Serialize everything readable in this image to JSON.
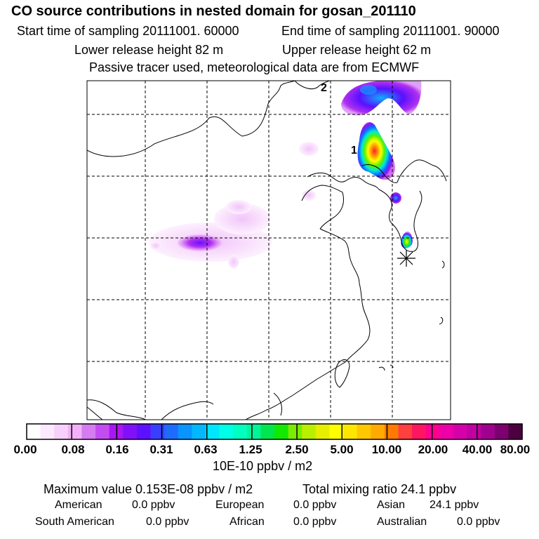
{
  "header": {
    "title": "CO  source contributions in nested domain for gosan_201110",
    "start_time": "Start time of sampling 20111001. 60000",
    "end_time": "End time of sampling 20111001. 90000",
    "lower_release": "Lower release height   82 m",
    "upper_release": "Upper release height   62 m",
    "tracer_note": "Passive tracer used, meteorological data are from ECMWF"
  },
  "map": {
    "marker_labels": [
      "1",
      "2"
    ],
    "receptor_symbol": "star-receptor"
  },
  "colorbar": {
    "tick_labels": [
      "0.00",
      "0.08",
      "0.16",
      "0.31",
      "0.63",
      "1.25",
      "2.50",
      "5.00",
      "10.00",
      "20.00",
      "40.00",
      "80.00"
    ],
    "unit": "10E-10 ppbv / m2",
    "colors": [
      "#ffffff",
      "#fbe9fd",
      "#f7d0fb",
      "#f3b0f8",
      "#d57cf2",
      "#c24cf0",
      "#a916f2",
      "#8010f7",
      "#5d10ff",
      "#3a3fff",
      "#1e6cff",
      "#0a94ff",
      "#00b8ff",
      "#00e6ff",
      "#00ffe8",
      "#00ffc0",
      "#00f59a",
      "#00e64e",
      "#12e800",
      "#7aec00",
      "#b8f000",
      "#e6ef00",
      "#ffff00",
      "#ffe600",
      "#ffc800",
      "#ffaa00",
      "#ff7a00",
      "#ff4040",
      "#ff1660",
      "#ff0090",
      "#ee00a8",
      "#d600aa",
      "#c000a0",
      "#a00090",
      "#7e0070",
      "#4c0040"
    ]
  },
  "chart_data": {
    "type": "heatmap",
    "title": "CO  source contributions in nested domain for gosan_201110",
    "colorbar_levels": [
      0.0,
      0.08,
      0.16,
      0.31,
      0.63,
      1.25,
      2.5,
      5.0,
      10.0,
      20.0,
      40.0,
      80.0
    ],
    "colorbar_unit": "10E-10 ppbv / m2",
    "maximum_value": "0.153E-08 ppbv / m2",
    "total_mixing_ratio": "24.1 ppbv",
    "source_contributions": {
      "American": 0.0,
      "European": 0.0,
      "Asian": 24.1,
      "South American": 0.0,
      "African": 0.0,
      "Australian": 0.0
    },
    "plumes": [
      {
        "region": "north-east (marker 1)",
        "peak_level": 10.0
      },
      {
        "region": "north border (marker 2)",
        "peak_level": 0.31
      },
      {
        "region": "receptor vicinity (Korea)",
        "peak_level": 2.5
      },
      {
        "region": "west interior",
        "peak_level": 0.16
      }
    ]
  },
  "summary": {
    "max_label": "Maximum value  0.153E-08 ppbv / m2",
    "total_label": "Total mixing ratio      24.1 ppbv",
    "rows": [
      [
        {
          "label": "American",
          "value": "0.0 ppbv"
        },
        {
          "label": "European",
          "value": "0.0 ppbv"
        },
        {
          "label": "Asian",
          "value": "24.1 ppbv"
        }
      ],
      [
        {
          "label": "South American",
          "value": "0.0 ppbv"
        },
        {
          "label": "African",
          "value": "0.0 ppbv"
        },
        {
          "label": "Australian",
          "value": "0.0 ppbv"
        }
      ]
    ]
  }
}
